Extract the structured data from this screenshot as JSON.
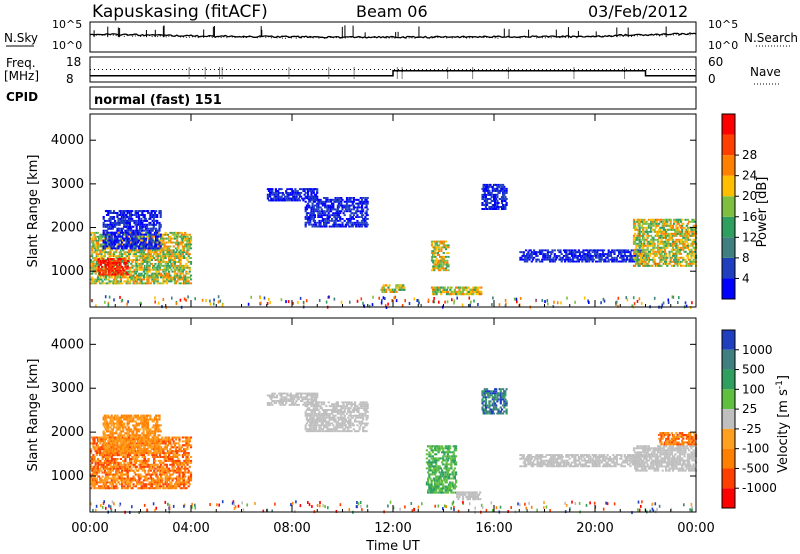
{
  "header": {
    "radar": "Kapuskasing (fitACF)",
    "beam": "Beam 06",
    "date": "03/Feb/2012"
  },
  "summary": {
    "nsky_label": "N.Sky",
    "nsky_ticks": [
      "10^5",
      "10^0"
    ],
    "nsearch_label": "N.Search",
    "nsearch_ticks": [
      "10^5",
      "10^0"
    ],
    "freq_label": "Freq.",
    "freq_unit": "[MHz]",
    "freq_ticks": [
      "18",
      "8"
    ],
    "nave_label": "Nave",
    "nave_ticks": [
      "60",
      "0"
    ],
    "cpid_label": "CPID",
    "cpid_value": "normal (fast) 151"
  },
  "colors": {
    "power_scale": [
      "#0000ff",
      "#1f3fbf",
      "#3f7f7f",
      "#2f9f5f",
      "#7fbf3f",
      "#ffbf00",
      "#ff7f00",
      "#ff3f00",
      "#ff0000"
    ],
    "velocity_scale": [
      "#1f3fbf",
      "#3f7f7f",
      "#2f9f5f",
      "#5fbf3f",
      "#bfbfbf",
      "#ff9f1f",
      "#ff7f00",
      "#ff3f00",
      "#ff0000"
    ]
  },
  "chart_data": [
    {
      "type": "line",
      "panel": "noise",
      "x": [
        "00:00",
        "02:00",
        "04:00",
        "06:00",
        "08:00",
        "10:00",
        "12:00",
        "14:00",
        "16:00",
        "18:00",
        "20:00",
        "22:00",
        "00:00"
      ],
      "series": [
        {
          "name": "N.Sky",
          "values": [
            1000,
            700,
            500,
            400,
            350,
            300,
            300,
            320,
            350,
            380,
            400,
            800,
            1200
          ]
        },
        {
          "name": "N.Search",
          "values": [
            700,
            500,
            350,
            300,
            280,
            250,
            250,
            260,
            280,
            300,
            320,
            600,
            900
          ]
        }
      ]
    },
    {
      "type": "line",
      "panel": "freq-nave",
      "x": [
        "00:00",
        "04:00",
        "08:00",
        "12:00",
        "16:00",
        "20:00",
        "22:00",
        "00:00"
      ],
      "series": [
        {
          "name": "Freq.",
          "values": [
            10.5,
            10.5,
            10.5,
            12.5,
            12.5,
            12.5,
            10.5,
            10.5
          ]
        },
        {
          "name": "Nave",
          "values": [
            30,
            30,
            30,
            30,
            30,
            30,
            30,
            30
          ]
        }
      ]
    },
    {
      "type": "heatmap",
      "panel": "power",
      "xlabel": "",
      "ylabel": "Slant Range [km]",
      "x_ticks": [
        "00:00",
        "04:00",
        "08:00",
        "12:00",
        "16:00",
        "20:00",
        "00:00"
      ],
      "y_ticks": [
        1000,
        2000,
        3000,
        4000
      ],
      "ylim": [
        180,
        4600
      ],
      "xlim_hours": [
        0,
        24
      ],
      "colorbar": {
        "label": "Power [dB]",
        "ticks": [
          4,
          8,
          12,
          16,
          20,
          24,
          28
        ],
        "range": [
          0,
          30
        ]
      },
      "regions": [
        {
          "t0": 0.0,
          "t1": 4.0,
          "r0": 700,
          "r1": 1900,
          "level": "high"
        },
        {
          "t0": 0.3,
          "t1": 1.5,
          "r0": 900,
          "r1": 1300,
          "level": "max"
        },
        {
          "t0": 0.5,
          "t1": 2.8,
          "r0": 1500,
          "r1": 2400,
          "level": "low"
        },
        {
          "t0": 7.0,
          "t1": 9.0,
          "r0": 2600,
          "r1": 2900,
          "level": "low"
        },
        {
          "t0": 8.5,
          "t1": 11.0,
          "r0": 2000,
          "r1": 2700,
          "level": "low"
        },
        {
          "t0": 11.5,
          "t1": 12.5,
          "r0": 500,
          "r1": 700,
          "level": "mid"
        },
        {
          "t0": 13.5,
          "t1": 15.5,
          "r0": 450,
          "r1": 650,
          "level": "mid"
        },
        {
          "t0": 13.5,
          "t1": 14.2,
          "r0": 1000,
          "r1": 1700,
          "level": "mid"
        },
        {
          "t0": 15.5,
          "t1": 16.5,
          "r0": 2400,
          "r1": 3000,
          "level": "low"
        },
        {
          "t0": 17.0,
          "t1": 22.0,
          "r0": 1200,
          "r1": 1500,
          "level": "low"
        },
        {
          "t0": 21.5,
          "t1": 24.0,
          "r0": 1100,
          "r1": 2200,
          "level": "high"
        }
      ]
    },
    {
      "type": "heatmap",
      "panel": "velocity",
      "xlabel": "Time UT",
      "ylabel": "Slant Range [km]",
      "x_ticks": [
        "00:00",
        "04:00",
        "08:00",
        "12:00",
        "16:00",
        "20:00",
        "00:00"
      ],
      "y_ticks": [
        1000,
        2000,
        3000,
        4000
      ],
      "ylim": [
        180,
        4600
      ],
      "xlim_hours": [
        0,
        24
      ],
      "colorbar": {
        "label": "Velocity [m s^-1]",
        "ticks": [
          1000,
          500,
          100,
          25,
          -25,
          -100,
          -500,
          -1000
        ]
      },
      "regions": [
        {
          "t0": 0.0,
          "t1": 4.0,
          "r0": 700,
          "r1": 1900,
          "level": "toward-strong"
        },
        {
          "t0": 0.5,
          "t1": 2.8,
          "r0": 1500,
          "r1": 2400,
          "level": "toward-weak"
        },
        {
          "t0": 7.0,
          "t1": 9.0,
          "r0": 2600,
          "r1": 2900,
          "level": "near-zero"
        },
        {
          "t0": 8.5,
          "t1": 11.0,
          "r0": 2000,
          "r1": 2700,
          "level": "near-zero"
        },
        {
          "t0": 13.3,
          "t1": 14.5,
          "r0": 600,
          "r1": 1700,
          "level": "away-weak"
        },
        {
          "t0": 14.5,
          "t1": 15.5,
          "r0": 450,
          "r1": 650,
          "level": "near-zero"
        },
        {
          "t0": 15.5,
          "t1": 16.5,
          "r0": 2400,
          "r1": 3000,
          "level": "away-mid"
        },
        {
          "t0": 17.0,
          "t1": 22.0,
          "r0": 1200,
          "r1": 1500,
          "level": "near-zero"
        },
        {
          "t0": 21.5,
          "t1": 24.0,
          "r0": 1100,
          "r1": 1700,
          "level": "near-zero"
        },
        {
          "t0": 22.5,
          "t1": 24.0,
          "r0": 1700,
          "r1": 2000,
          "level": "toward-strong"
        }
      ]
    }
  ]
}
